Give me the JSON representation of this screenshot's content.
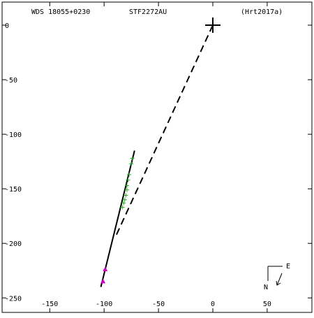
{
  "header": {
    "left": "WDS 18055+0230",
    "center": "STF2272AU",
    "right": "(Hrt2017a)"
  },
  "compass": {
    "east": "E",
    "north": "N"
  },
  "colors": {
    "axis": "#000000",
    "orbit": "#000000",
    "obs_plus": "#22aa22",
    "obs_triangle": "#cc00cc"
  },
  "chart_data": {
    "type": "scatter",
    "title": "",
    "xlabel": "",
    "ylabel": "",
    "xlim": [
      -190,
      90
    ],
    "ylim": [
      -260,
      12
    ],
    "x_ticks": [
      -150,
      -100,
      -50,
      0,
      50
    ],
    "y_ticks": [
      0,
      -50,
      -100,
      -150,
      -200,
      -250
    ],
    "primary": {
      "x": 0,
      "y": 0,
      "marker": "large-plus"
    },
    "orbit_segment": {
      "from": [
        -72,
        -115
      ],
      "to": [
        -103,
        -240
      ],
      "style": "solid"
    },
    "node_line": {
      "from": [
        0,
        0
      ],
      "to": [
        -90,
        -195
      ],
      "style": "dashed"
    },
    "series": [
      {
        "marker": "plus",
        "points": [
          [
            -74,
            -122
          ],
          [
            -75,
            -127
          ],
          [
            -77,
            -137
          ],
          [
            -78,
            -142
          ],
          [
            -79,
            -147
          ],
          [
            -79,
            -151
          ],
          [
            -80,
            -156
          ],
          [
            -81,
            -160
          ],
          [
            -82,
            -163
          ],
          [
            -83,
            -167
          ]
        ]
      },
      {
        "marker": "triangle",
        "points": [
          [
            -99,
            -224
          ],
          [
            -101,
            -235
          ]
        ]
      }
    ]
  }
}
